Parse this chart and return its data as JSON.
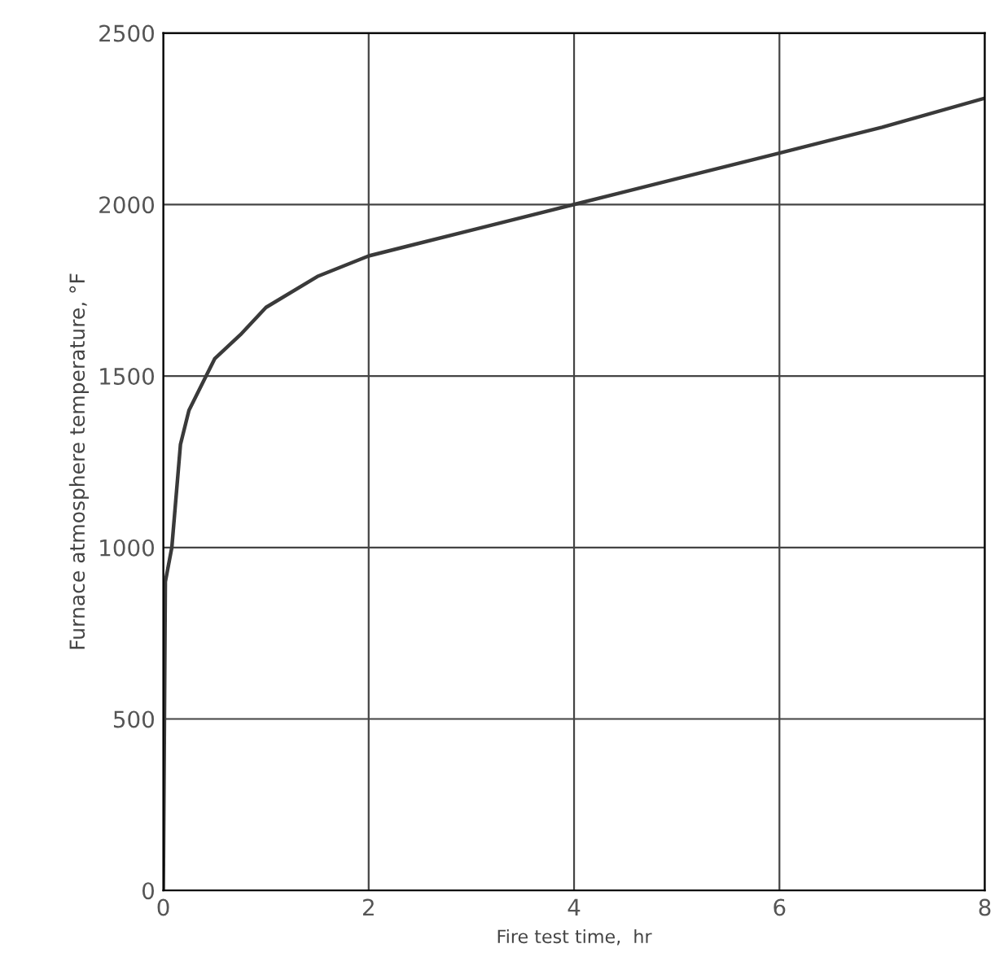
{
  "chart_data": {
    "type": "line",
    "xlabel": "Fire test time,  hr",
    "ylabel": "Furnace atmosphere temperature, °F",
    "x": [
      0,
      0.02,
      0.083,
      0.167,
      0.25,
      0.5,
      0.75,
      1,
      1.5,
      2,
      3,
      4,
      5,
      6,
      7,
      8
    ],
    "series": [
      {
        "color": "#3a3a3a",
        "values": [
          0,
          900,
          1000,
          1300,
          1400,
          1550,
          1620,
          1700,
          1790,
          1850,
          1925,
          2000,
          2075,
          2150,
          2225,
          2310
        ]
      }
    ],
    "xlim": [
      0,
      8
    ],
    "xticks": [
      0,
      2,
      4,
      6,
      8
    ],
    "ylim": [
      0,
      2500
    ],
    "yticks": [
      0,
      500,
      1000,
      1500,
      2000,
      2500
    ],
    "grid": true,
    "legend": false,
    "marker": "none",
    "line_style": "solid"
  }
}
